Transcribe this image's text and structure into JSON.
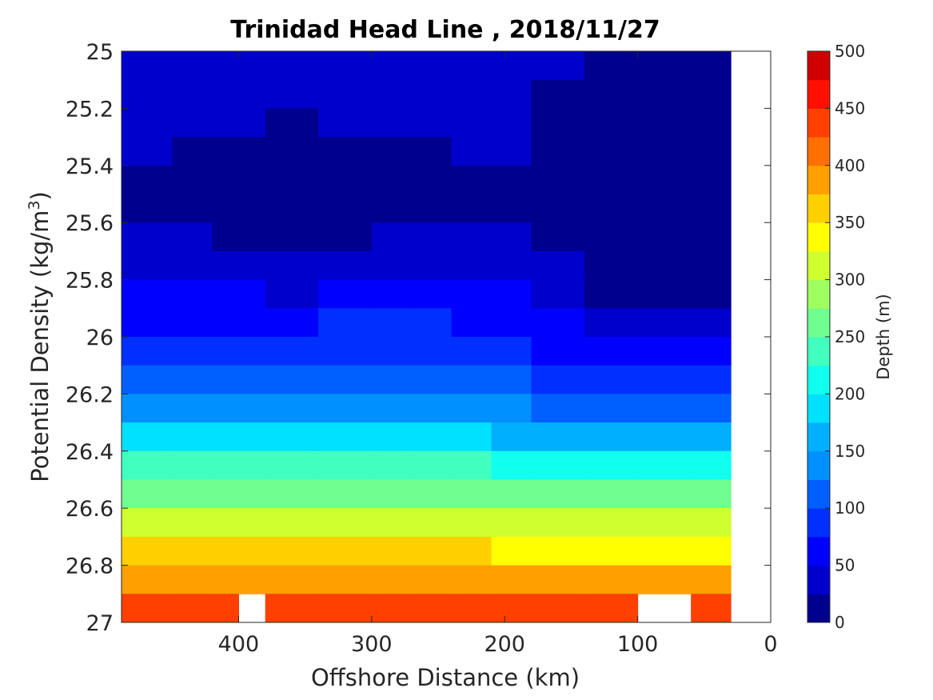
{
  "chart_data": {
    "type": "contour",
    "title": "Trinidad Head Line , 2018/11/27",
    "xlabel": "Offshore Distance (km)",
    "ylabel_prefix": "Potential Density (kg/m",
    "ylabel_sup": "3",
    "ylabel_suffix": ")",
    "x_reversed": true,
    "xlim": [
      0,
      488
    ],
    "ylim": [
      25,
      27
    ],
    "y_reversed": true,
    "xticks": [
      400,
      300,
      200,
      100,
      0
    ],
    "xtick_labels": [
      "400",
      "300",
      "200",
      "100",
      "0"
    ],
    "yticks": [
      25,
      25.2,
      25.4,
      25.6,
      25.8,
      26,
      26.2,
      26.4,
      26.6,
      26.8,
      27
    ],
    "ytick_labels": [
      "25",
      "25.2",
      "25.4",
      "25.6",
      "25.8",
      "26",
      "26.2",
      "26.4",
      "26.6",
      "26.8",
      "27"
    ],
    "colorbar": {
      "label": "Depth (m)",
      "range": [
        0,
        500
      ],
      "ticks": [
        0,
        50,
        100,
        150,
        200,
        250,
        300,
        350,
        400,
        450,
        500
      ],
      "tick_labels": [
        "0",
        "50",
        "100",
        "150",
        "200",
        "250",
        "300",
        "350",
        "400",
        "450",
        "500"
      ],
      "levels": [
        0,
        25,
        50,
        75,
        100,
        125,
        150,
        175,
        200,
        225,
        250,
        275,
        300,
        325,
        350,
        375,
        400,
        425,
        450,
        475,
        500
      ],
      "colors": [
        "#00008f",
        "#0000cc",
        "#0000ff",
        "#0030ff",
        "#0060ff",
        "#0090ff",
        "#00b0ff",
        "#00e0ff",
        "#10ffef",
        "#40ffbf",
        "#70ff8f",
        "#a0ff60",
        "#d0ff30",
        "#ffff00",
        "#ffd000",
        "#ffa000",
        "#ff7000",
        "#ff4000",
        "#ff1000",
        "#d00000"
      ]
    },
    "columns": [
      {
        "x": 488,
        "depths": [
          45,
          42,
          38,
          33,
          28,
          25,
          30,
          40,
          55,
          70,
          82,
          95,
          110,
          150,
          200,
          250,
          290,
          330,
          370,
          410,
          480
        ]
      },
      {
        "x": 450,
        "depths": [
          45,
          38,
          32,
          25,
          20,
          15,
          22,
          30,
          48,
          65,
          78,
          95,
          110,
          150,
          200,
          250,
          290,
          330,
          370,
          410,
          480
        ]
      },
      {
        "x": 420,
        "depths": [
          45,
          40,
          35,
          28,
          22,
          15,
          20,
          28,
          45,
          60,
          80,
          95,
          115,
          150,
          200,
          250,
          290,
          330,
          370,
          410,
          480
        ]
      },
      {
        "x": 400,
        "depths": [
          42,
          38,
          33,
          27,
          22,
          15,
          15,
          20,
          45,
          60,
          80,
          95,
          115,
          150,
          200,
          250,
          290,
          330,
          370,
          410,
          null
        ]
      },
      {
        "x": 380,
        "depths": [
          40,
          30,
          25,
          18,
          15,
          10,
          12,
          18,
          42,
          55,
          80,
          95,
          115,
          150,
          200,
          250,
          290,
          330,
          370,
          410,
          null
        ]
      },
      {
        "x": 360,
        "depths": [
          40,
          33,
          28,
          20,
          15,
          12,
          10,
          15,
          40,
          55,
          75,
          90,
          115,
          150,
          200,
          250,
          290,
          330,
          370,
          410,
          480
        ]
      },
      {
        "x": 340,
        "depths": [
          40,
          33,
          28,
          20,
          15,
          12,
          12,
          18,
          42,
          60,
          85,
          100,
          120,
          160,
          210,
          250,
          290,
          330,
          370,
          410,
          480
        ]
      },
      {
        "x": 300,
        "depths": [
          45,
          38,
          33,
          25,
          20,
          15,
          20,
          30,
          50,
          65,
          90,
          105,
          125,
          165,
          215,
          250,
          290,
          330,
          370,
          410,
          480
        ]
      },
      {
        "x": 270,
        "depths": [
          45,
          38,
          33,
          25,
          20,
          15,
          20,
          30,
          52,
          68,
          92,
          108,
          128,
          165,
          215,
          255,
          290,
          330,
          370,
          410,
          480
        ]
      },
      {
        "x": 240,
        "depths": [
          45,
          38,
          33,
          25,
          20,
          15,
          20,
          30,
          48,
          64,
          88,
          105,
          125,
          160,
          210,
          250,
          290,
          330,
          370,
          410,
          480
        ]
      },
      {
        "x": 210,
        "depths": [
          45,
          40,
          38,
          35,
          30,
          25,
          25,
          30,
          45,
          60,
          80,
          95,
          115,
          150,
          200,
          250,
          290,
          330,
          370,
          410,
          480
        ]
      },
      {
        "x": 180,
        "depths": [
          30,
          28,
          25,
          22,
          20,
          20,
          25,
          30,
          42,
          55,
          72,
          88,
          105,
          140,
          190,
          240,
          280,
          320,
          360,
          400,
          null
        ]
      },
      {
        "x": 140,
        "depths": [
          22,
          20,
          18,
          15,
          10,
          8,
          5,
          10,
          20,
          30,
          50,
          72,
          98,
          138,
          190,
          240,
          280,
          320,
          360,
          400,
          480
        ]
      },
      {
        "x": 100,
        "depths": [
          18,
          16,
          12,
          10,
          8,
          5,
          5,
          8,
          15,
          25,
          45,
          68,
          95,
          135,
          185,
          235,
          280,
          320,
          360,
          400,
          null
        ]
      },
      {
        "x": 60,
        "depths": [
          22,
          18,
          14,
          10,
          8,
          5,
          5,
          8,
          15,
          25,
          45,
          68,
          95,
          135,
          185,
          235,
          280,
          320,
          360,
          400,
          null
        ]
      },
      {
        "x": 30,
        "depths": [
          null,
          15,
          8,
          5,
          5,
          5,
          5,
          8,
          15,
          25,
          45,
          68,
          95,
          135,
          185,
          235,
          280,
          320,
          360,
          400,
          480
        ]
      }
    ]
  }
}
